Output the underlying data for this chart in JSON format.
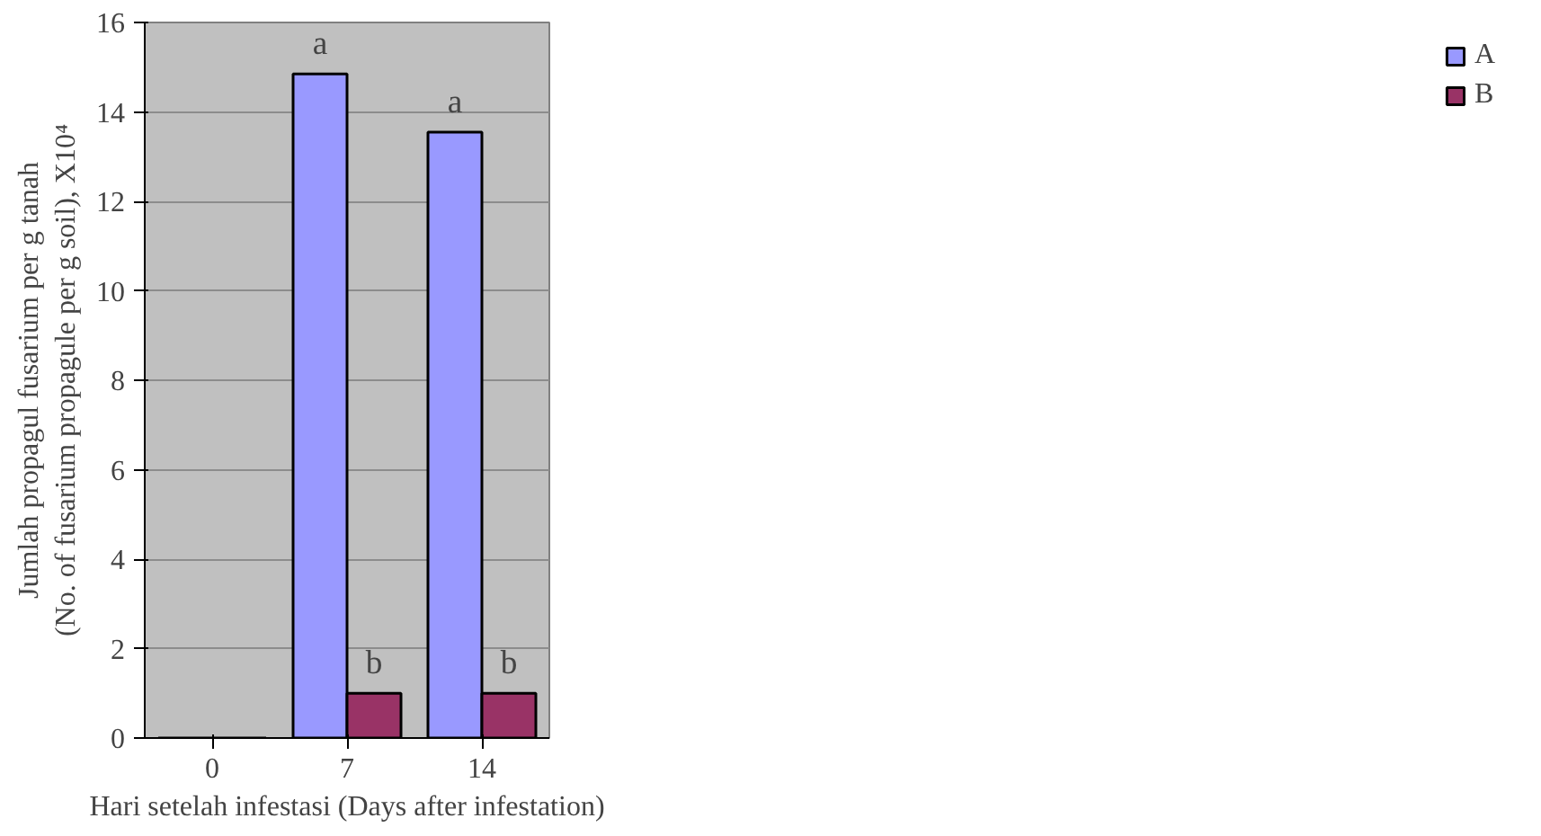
{
  "chart_data": {
    "type": "bar",
    "xlabel": "Hari setelah infestasi (Days after infestation)",
    "ylabel": "Jumlah propagul fusarium per g tanah (No. of fusarium propagule per g soil), X10⁴",
    "categories": [
      "0",
      "7",
      "14"
    ],
    "series": [
      {
        "name": "A",
        "color": "#9999ff",
        "values": [
          0,
          14.85,
          13.55
        ]
      },
      {
        "name": "B",
        "color": "#993366",
        "values": [
          0,
          1.0,
          1.0
        ]
      }
    ],
    "ylim": [
      0,
      16
    ],
    "yticks": [
      0,
      2,
      4,
      6,
      8,
      10,
      12,
      14,
      16
    ],
    "grid": "y",
    "legend": "right",
    "annotations": [
      {
        "text": "a",
        "x": "7",
        "y": 14.85
      },
      {
        "text": "b",
        "x": "7",
        "y": 1.0
      },
      {
        "text": "a",
        "x": "14",
        "y": 13.55
      },
      {
        "text": "b",
        "x": "14",
        "y": 1.0
      }
    ]
  }
}
